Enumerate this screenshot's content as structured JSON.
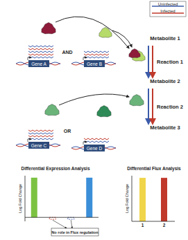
{
  "legend": [
    {
      "label": "Uninfected",
      "color": "#3b5ba9"
    },
    {
      "label": "Infected",
      "color": "#c0392b"
    }
  ],
  "genes": [
    "Gene A",
    "Gene B",
    "Gene C",
    "Gene D"
  ],
  "logic": [
    "AND",
    "OR"
  ],
  "metabolites": [
    "Metabolite 1",
    "Metabolite 2",
    "Metabolite 3"
  ],
  "reactions": [
    "Reaction 1",
    "Reaction 2"
  ],
  "chart_data": [
    {
      "type": "bar",
      "title": "Differential Expression Analysis",
      "y_label": "Log Fold Change",
      "categories": [
        null,
        null,
        null,
        null
      ],
      "values": [
        1,
        -0.05,
        -0.05,
        1
      ],
      "colors": [
        "#7cc242",
        "#c0392b",
        "#3b5ba9",
        "#3b8fd9"
      ],
      "ylim": [
        -0.1,
        1.05
      ],
      "tick_labels": false,
      "annotation": "No role in Flux regulation"
    },
    {
      "type": "bar",
      "title": "Differential Flux Analysis",
      "y_label": "Log Fold Change",
      "categories": [
        "1",
        "2"
      ],
      "values": [
        1,
        1
      ],
      "colors": [
        "#f0d54a",
        "#c0392b"
      ],
      "ylim": [
        0,
        1.05
      ],
      "tick_labels": "x"
    }
  ]
}
